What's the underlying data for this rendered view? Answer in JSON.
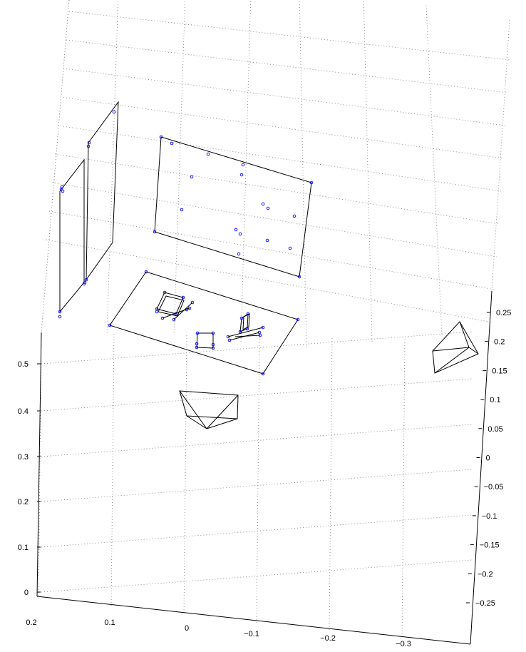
{
  "chart_data": {
    "type": "scatter3d",
    "title": "",
    "xlabel": "",
    "ylabel": "",
    "zlabel": "",
    "grid": true,
    "x_ticks": [
      "0.2",
      "0.1",
      "0",
      "−0.1",
      "−0.2",
      "−0.3"
    ],
    "y_ticks": [
      "0.25",
      "0.2",
      "0.15",
      "0.1",
      "0.05",
      "0",
      "−0.05",
      "−0.1",
      "−0.15",
      "−0.2",
      "−0.25"
    ],
    "z_ticks": [
      "0.5",
      "0.4",
      "0.3",
      "0.2",
      "0.1",
      "0"
    ],
    "colors": {
      "points": "#0000ff",
      "blue_camera": "#0000ff",
      "red_camera": "#ff0000",
      "structure": "#000000"
    },
    "objects": [
      "left-wall-plane-1",
      "left-wall-plane-2",
      "back-wall-plane",
      "floor-plane",
      "box-1",
      "box-2",
      "box-3",
      "blue-camera-frustum",
      "red-camera-frustum"
    ]
  }
}
